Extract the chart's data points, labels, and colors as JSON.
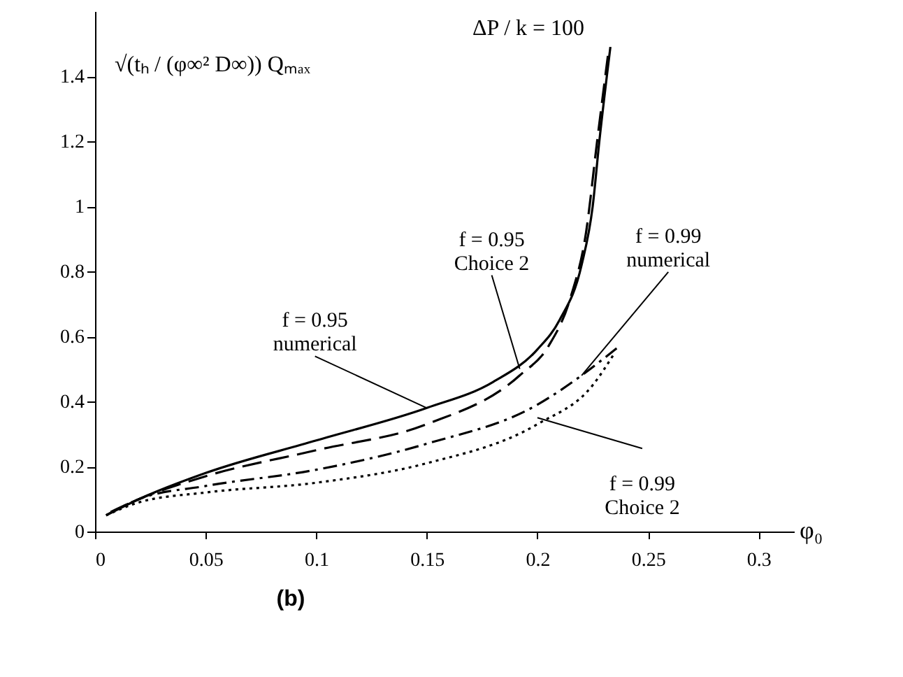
{
  "chart_data": {
    "type": "line",
    "ylabel": "√(tₕ / (φ∞² D∞)) Qₘₐₓ",
    "xlabel": "φ₀",
    "xlim": [
      0,
      0.316
    ],
    "ylim": [
      0,
      1.6
    ],
    "xticks": [
      0,
      0.05,
      0.1,
      0.15,
      0.2,
      0.25,
      0.3
    ],
    "yticks": [
      0,
      0.2,
      0.4,
      0.6,
      0.8,
      1,
      1.2,
      1.4
    ],
    "grid": false,
    "legend": false,
    "marker": "none",
    "series": [
      {
        "color": "#000000",
        "line_style": "solid",
        "x": [
          0.005,
          0.02,
          0.05,
          0.1,
          0.15,
          0.18,
          0.2,
          0.21,
          0.22,
          0.225,
          0.228,
          0.233
        ],
        "values": [
          0.05,
          0.1,
          0.18,
          0.28,
          0.38,
          0.46,
          0.56,
          0.65,
          0.82,
          1.0,
          1.2,
          1.49
        ]
      },
      {
        "color": "#000000",
        "line_style": "dashed",
        "x": [
          0.007,
          0.02,
          0.05,
          0.1,
          0.15,
          0.192,
          0.205,
          0.215,
          0.222,
          0.227,
          0.232
        ],
        "values": [
          0.06,
          0.1,
          0.17,
          0.25,
          0.33,
          0.48,
          0.57,
          0.72,
          0.92,
          1.2,
          1.47
        ]
      },
      {
        "color": "#000000",
        "line_style": "dashdot",
        "x": [
          0.005,
          0.02,
          0.05,
          0.1,
          0.15,
          0.2,
          0.22,
          0.237
        ],
        "values": [
          0.05,
          0.1,
          0.14,
          0.19,
          0.27,
          0.39,
          0.48,
          0.57
        ]
      },
      {
        "color": "#000000",
        "line_style": "dotted",
        "x": [
          0.005,
          0.02,
          0.05,
          0.1,
          0.15,
          0.2,
          0.225,
          0.235
        ],
        "values": [
          0.05,
          0.09,
          0.12,
          0.15,
          0.21,
          0.33,
          0.45,
          0.55
        ]
      }
    ],
    "annotations": [
      {
        "text": "f = 0.95\nnumerical",
        "x": 0.15,
        "y": 0.38
      },
      {
        "text": "f = 0.95\nChoice 2",
        "x": 0.192,
        "y": 0.5
      },
      {
        "text": "f = 0.99\nnumerical",
        "x": 0.22,
        "y": 0.48
      },
      {
        "text": "f = 0.99\nChoice 2",
        "x": 0.2,
        "y": 0.35
      },
      "ΔP / k = 100",
      "(b)"
    ]
  }
}
